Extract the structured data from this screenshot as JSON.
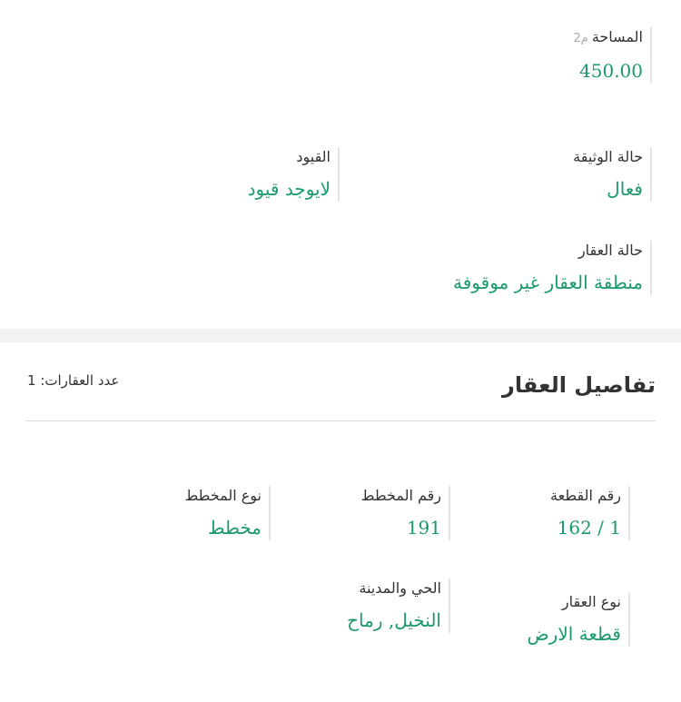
{
  "document_info": {
    "area": {
      "label": "المساحة",
      "unit": "م2",
      "value": "450.00"
    },
    "document_status": {
      "label": "حالة الوثيقة",
      "value": "فعال"
    },
    "restrictions": {
      "label": "القيود",
      "value": "لايوجد قيود"
    },
    "property_status": {
      "label": "حالة العقار",
      "value": "منطقة العقار غير موقوفة"
    }
  },
  "property_details": {
    "title": "تفاصيل العقار",
    "count_label": "عدد العقارات:",
    "count": "1",
    "fields": [
      {
        "label": "رقم القطعة",
        "value": "1 / 162"
      },
      {
        "label": "رقم المخطط",
        "value": "191"
      },
      {
        "label": "نوع المخطط",
        "value": "مخطط"
      },
      {
        "label": "نوع العقار",
        "value": "قطعة الارض"
      },
      {
        "label": "الحي والمدينة",
        "value": "النخيل, رماح"
      }
    ]
  },
  "colors": {
    "value": "#1a9a6c",
    "label": "#333333",
    "band": "#f2f2f2"
  }
}
